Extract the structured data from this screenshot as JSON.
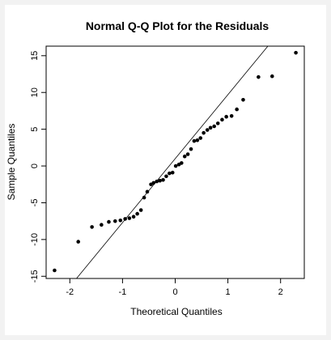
{
  "chart_data": {
    "type": "scatter",
    "title": "Normal Q-Q Plot for the Residuals",
    "xlabel": "Theoretical Quantiles",
    "ylabel": "Sample Quantiles",
    "xlim": [
      -2.45,
      2.45
    ],
    "ylim": [
      -15.3,
      16.3
    ],
    "xticks": [
      -2,
      -1,
      0,
      1,
      2
    ],
    "yticks": [
      -15,
      -10,
      -5,
      0,
      5,
      10,
      15
    ],
    "reference_line": {
      "intercept": 1.0,
      "slope": 8.7
    },
    "points": [
      {
        "x": -2.29,
        "y": -14.2
      },
      {
        "x": -1.84,
        "y": -10.3
      },
      {
        "x": -1.58,
        "y": -8.3
      },
      {
        "x": -1.4,
        "y": -8.0
      },
      {
        "x": -1.26,
        "y": -7.6
      },
      {
        "x": -1.14,
        "y": -7.5
      },
      {
        "x": -1.04,
        "y": -7.4
      },
      {
        "x": -0.95,
        "y": -7.2
      },
      {
        "x": -0.87,
        "y": -7.1
      },
      {
        "x": -0.79,
        "y": -6.9
      },
      {
        "x": -0.72,
        "y": -6.5
      },
      {
        "x": -0.65,
        "y": -6.0
      },
      {
        "x": -0.59,
        "y": -4.3
      },
      {
        "x": -0.53,
        "y": -3.5
      },
      {
        "x": -0.46,
        "y": -2.5
      },
      {
        "x": -0.41,
        "y": -2.3
      },
      {
        "x": -0.35,
        "y": -2.1
      },
      {
        "x": -0.29,
        "y": -2.0
      },
      {
        "x": -0.23,
        "y": -1.9
      },
      {
        "x": -0.17,
        "y": -1.4
      },
      {
        "x": -0.11,
        "y": -1.0
      },
      {
        "x": -0.05,
        "y": -0.9
      },
      {
        "x": 0.01,
        "y": 0.0
      },
      {
        "x": 0.07,
        "y": 0.2
      },
      {
        "x": 0.12,
        "y": 0.4
      },
      {
        "x": 0.18,
        "y": 1.3
      },
      {
        "x": 0.24,
        "y": 1.6
      },
      {
        "x": 0.3,
        "y": 2.3
      },
      {
        "x": 0.36,
        "y": 3.4
      },
      {
        "x": 0.42,
        "y": 3.5
      },
      {
        "x": 0.48,
        "y": 3.8
      },
      {
        "x": 0.54,
        "y": 4.5
      },
      {
        "x": 0.61,
        "y": 4.9
      },
      {
        "x": 0.67,
        "y": 5.2
      },
      {
        "x": 0.74,
        "y": 5.4
      },
      {
        "x": 0.81,
        "y": 5.8
      },
      {
        "x": 0.89,
        "y": 6.3
      },
      {
        "x": 0.97,
        "y": 6.7
      },
      {
        "x": 1.07,
        "y": 6.8
      },
      {
        "x": 1.17,
        "y": 7.7
      },
      {
        "x": 1.29,
        "y": 9.0
      },
      {
        "x": 1.58,
        "y": 12.1
      },
      {
        "x": 1.84,
        "y": 12.2
      },
      {
        "x": 2.29,
        "y": 15.4
      }
    ]
  }
}
